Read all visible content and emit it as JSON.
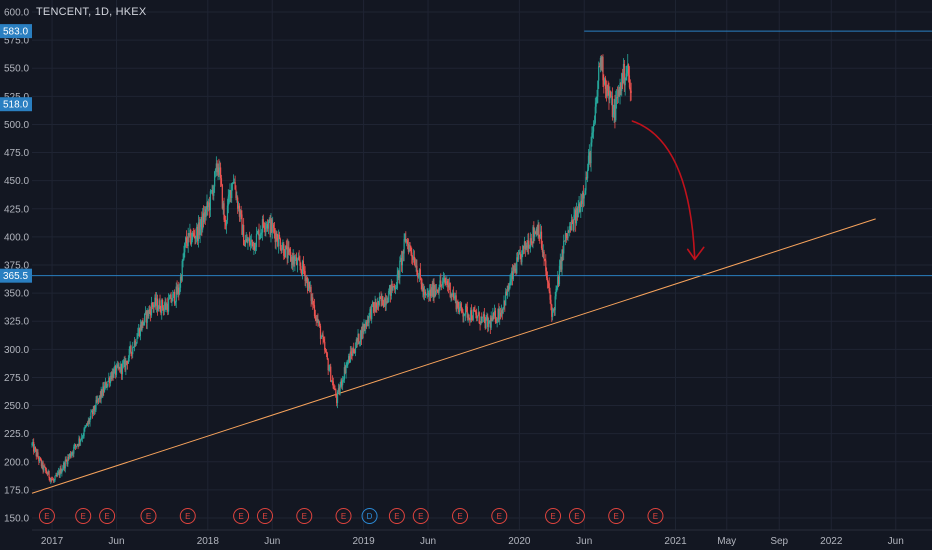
{
  "header": {
    "title": "TENCENT, 1D, HKEX"
  },
  "colors": {
    "background": "#131722",
    "grid": "#1f2433",
    "up": "#26a69a",
    "down": "#ef5350",
    "trendline": "#f7a35c",
    "hline": "#2a7fc1",
    "price_label_bg": "#2a7fc1",
    "arrow": "#c0121c",
    "earnings": "#e0443e",
    "dividend": "#2b8bd8"
  },
  "chart_data": {
    "type": "candlestick",
    "symbol": "TENCENT",
    "interval": "1D",
    "exchange": "HKEX",
    "y_ticks": [
      "150.0",
      "175.0",
      "200.0",
      "225.0",
      "250.0",
      "275.0",
      "300.0",
      "325.0",
      "350.0",
      "375.0",
      "400.0",
      "425.0",
      "450.0",
      "475.0",
      "500.0",
      "525.0",
      "550.0",
      "575.0",
      "600.0"
    ],
    "ylim": [
      145,
      610
    ],
    "xlim": [
      "2016-11-15",
      "2022-08-25"
    ],
    "x_ticks": [
      {
        "label": "2017",
        "date": "2017-01-01"
      },
      {
        "label": "Jun",
        "date": "2017-06-01"
      },
      {
        "label": "2018",
        "date": "2018-01-01"
      },
      {
        "label": "Jun",
        "date": "2018-06-01"
      },
      {
        "label": "2019",
        "date": "2019-01-01"
      },
      {
        "label": "Jun",
        "date": "2019-06-01"
      },
      {
        "label": "2020",
        "date": "2020-01-01"
      },
      {
        "label": "Jun",
        "date": "2020-06-01"
      },
      {
        "label": "2021",
        "date": "2021-01-01"
      },
      {
        "label": "May",
        "date": "2021-05-01"
      },
      {
        "label": "Sep",
        "date": "2021-09-01"
      },
      {
        "label": "2022",
        "date": "2022-01-01"
      },
      {
        "label": "Jun",
        "date": "2022-06-01"
      }
    ],
    "price_path": [
      [
        "2016-11-15",
        215
      ],
      [
        "2016-12-10",
        195
      ],
      [
        "2017-01-05",
        182
      ],
      [
        "2017-02-10",
        205
      ],
      [
        "2017-03-15",
        225
      ],
      [
        "2017-04-20",
        255
      ],
      [
        "2017-05-20",
        278
      ],
      [
        "2017-06-20",
        285
      ],
      [
        "2017-07-25",
        318
      ],
      [
        "2017-08-25",
        340
      ],
      [
        "2017-09-25",
        338
      ],
      [
        "2017-10-25",
        352
      ],
      [
        "2017-11-10",
        395
      ],
      [
        "2017-12-10",
        405
      ],
      [
        "2018-01-05",
        430
      ],
      [
        "2018-01-26",
        466
      ],
      [
        "2018-02-10",
        410
      ],
      [
        "2018-03-01",
        455
      ],
      [
        "2018-03-28",
        395
      ],
      [
        "2018-04-20",
        395
      ],
      [
        "2018-05-15",
        415
      ],
      [
        "2018-06-05",
        405
      ],
      [
        "2018-07-05",
        385
      ],
      [
        "2018-08-15",
        370
      ],
      [
        "2018-09-15",
        325
      ],
      [
        "2018-10-30",
        255
      ],
      [
        "2018-11-20",
        285
      ],
      [
        "2018-12-15",
        305
      ],
      [
        "2019-01-20",
        335
      ],
      [
        "2019-02-20",
        345
      ],
      [
        "2019-03-20",
        360
      ],
      [
        "2019-04-10",
        398
      ],
      [
        "2019-05-01",
        380
      ],
      [
        "2019-05-25",
        345
      ],
      [
        "2019-06-20",
        355
      ],
      [
        "2019-07-15",
        360
      ],
      [
        "2019-08-15",
        335
      ],
      [
        "2019-09-20",
        330
      ],
      [
        "2019-10-20",
        322
      ],
      [
        "2019-11-20",
        335
      ],
      [
        "2019-12-20",
        370
      ],
      [
        "2020-01-20",
        395
      ],
      [
        "2020-02-15",
        410
      ],
      [
        "2020-03-19",
        330
      ],
      [
        "2020-04-15",
        395
      ],
      [
        "2020-05-15",
        420
      ],
      [
        "2020-06-05",
        450
      ],
      [
        "2020-06-25",
        500
      ],
      [
        "2020-07-08",
        560
      ],
      [
        "2020-07-25",
        530
      ],
      [
        "2020-08-10",
        510
      ],
      [
        "2020-08-28",
        540
      ],
      [
        "2020-09-10",
        550
      ],
      [
        "2020-09-20",
        520
      ]
    ],
    "horizontal_lines": [
      {
        "price": 583.0,
        "label": "583.0",
        "start": "2020-06-01"
      },
      {
        "price": 365.5,
        "label": "365.5",
        "start": "2016-11-15"
      }
    ],
    "current_price_label": {
      "price": 518.0,
      "label": "518.0"
    },
    "trendline": {
      "from": [
        "2016-11-15",
        172
      ],
      "to": [
        "2022-04-15",
        416
      ]
    },
    "arrow": {
      "from": [
        "2020-09-22",
        503
      ],
      "to": [
        "2021-02-15",
        380
      ]
    },
    "events": [
      {
        "type": "E",
        "date": "2016-12-20"
      },
      {
        "type": "E",
        "date": "2017-03-15"
      },
      {
        "type": "E",
        "date": "2017-05-10"
      },
      {
        "type": "E",
        "date": "2017-08-15"
      },
      {
        "type": "E",
        "date": "2017-11-15"
      },
      {
        "type": "E",
        "date": "2018-03-20"
      },
      {
        "type": "E",
        "date": "2018-05-15"
      },
      {
        "type": "E",
        "date": "2018-08-15"
      },
      {
        "type": "E",
        "date": "2018-11-15"
      },
      {
        "type": "D",
        "date": "2019-01-15"
      },
      {
        "type": "E",
        "date": "2019-03-20"
      },
      {
        "type": "E",
        "date": "2019-05-15"
      },
      {
        "type": "E",
        "date": "2019-08-15"
      },
      {
        "type": "E",
        "date": "2019-11-15"
      },
      {
        "type": "E",
        "date": "2020-03-20"
      },
      {
        "type": "E",
        "date": "2020-05-15"
      },
      {
        "type": "E",
        "date": "2020-08-15"
      },
      {
        "type": "E",
        "date": "2020-11-15"
      }
    ]
  }
}
